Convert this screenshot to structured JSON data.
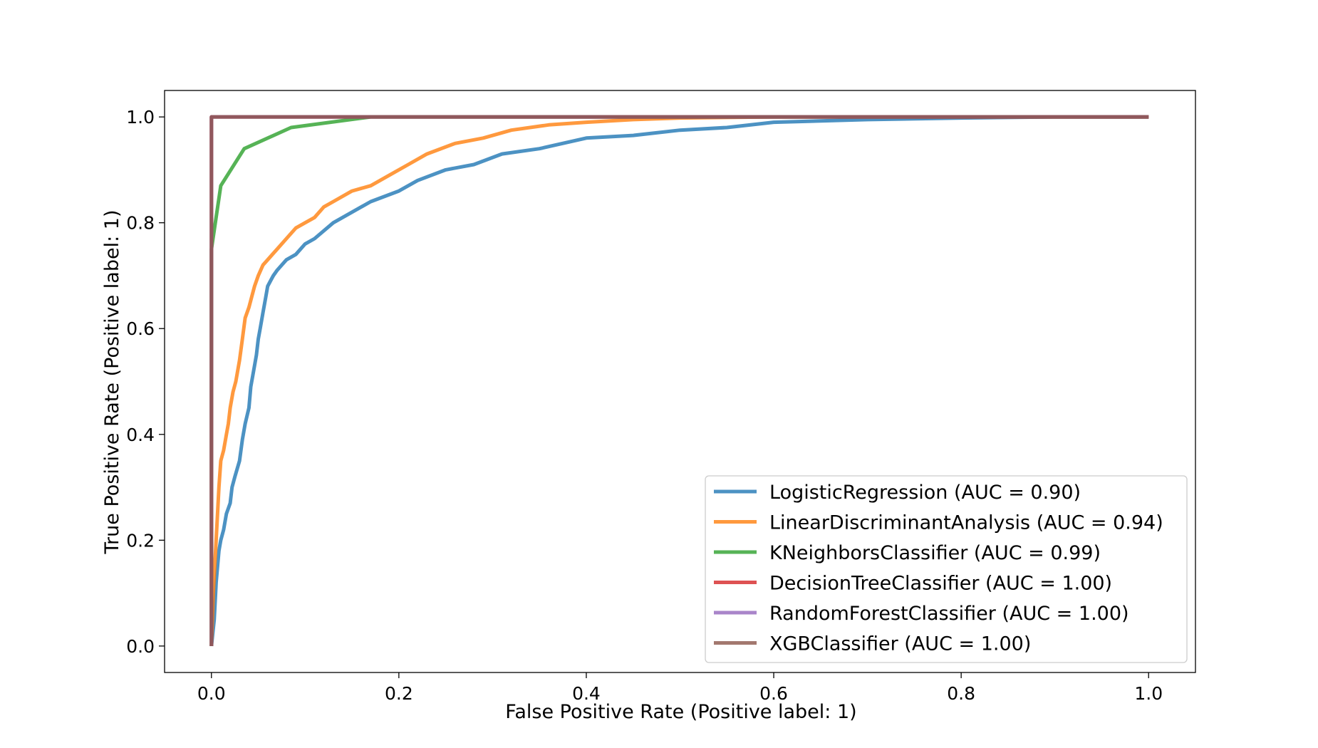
{
  "chart_data": {
    "type": "line",
    "title": "",
    "xlabel": "False Positive Rate (Positive label: 1)",
    "ylabel": "True Positive Rate (Positive label: 1)",
    "xlim": [
      -0.05,
      1.05
    ],
    "ylim": [
      -0.05,
      1.05
    ],
    "xticks": [
      "0.0",
      "0.2",
      "0.4",
      "0.6",
      "0.8",
      "1.0"
    ],
    "yticks": [
      "0.0",
      "0.2",
      "0.4",
      "0.6",
      "0.8",
      "1.0"
    ],
    "grid": false,
    "legend_position": "lower-right",
    "series": [
      {
        "name": "LogisticRegression (AUC = 0.90)",
        "color": "#1f77b4",
        "x": [
          0,
          0.003,
          0.005,
          0.008,
          0.01,
          0.013,
          0.016,
          0.02,
          0.022,
          0.025,
          0.03,
          0.033,
          0.036,
          0.04,
          0.042,
          0.045,
          0.048,
          0.05,
          0.052,
          0.055,
          0.058,
          0.06,
          0.063,
          0.066,
          0.07,
          0.075,
          0.08,
          0.09,
          0.1,
          0.11,
          0.13,
          0.15,
          0.17,
          0.2,
          0.22,
          0.25,
          0.28,
          0.31,
          0.35,
          0.4,
          0.45,
          0.5,
          0.55,
          0.6,
          0.7,
          0.8,
          0.9,
          1.0
        ],
        "y": [
          0,
          0.05,
          0.12,
          0.18,
          0.2,
          0.22,
          0.25,
          0.27,
          0.3,
          0.32,
          0.35,
          0.39,
          0.42,
          0.45,
          0.49,
          0.52,
          0.55,
          0.58,
          0.6,
          0.63,
          0.66,
          0.68,
          0.69,
          0.7,
          0.71,
          0.72,
          0.73,
          0.74,
          0.76,
          0.77,
          0.8,
          0.82,
          0.84,
          0.86,
          0.88,
          0.9,
          0.91,
          0.93,
          0.94,
          0.96,
          0.965,
          0.975,
          0.98,
          0.99,
          0.995,
          0.998,
          1.0,
          1.0
        ]
      },
      {
        "name": "LinearDiscriminantAnalysis (AUC = 0.94)",
        "color": "#ff7f0e",
        "x": [
          0,
          0.002,
          0.005,
          0.008,
          0.01,
          0.013,
          0.016,
          0.018,
          0.02,
          0.023,
          0.026,
          0.03,
          0.033,
          0.036,
          0.04,
          0.043,
          0.046,
          0.05,
          0.055,
          0.06,
          0.065,
          0.07,
          0.08,
          0.09,
          0.1,
          0.11,
          0.12,
          0.13,
          0.15,
          0.17,
          0.19,
          0.21,
          0.23,
          0.26,
          0.29,
          0.32,
          0.36,
          0.4,
          0.45,
          0.5,
          0.6,
          0.7,
          1.0
        ],
        "y": [
          0,
          0.1,
          0.2,
          0.3,
          0.35,
          0.37,
          0.4,
          0.42,
          0.45,
          0.48,
          0.5,
          0.54,
          0.58,
          0.62,
          0.64,
          0.66,
          0.68,
          0.7,
          0.72,
          0.73,
          0.74,
          0.75,
          0.77,
          0.79,
          0.8,
          0.81,
          0.83,
          0.84,
          0.86,
          0.87,
          0.89,
          0.91,
          0.93,
          0.95,
          0.96,
          0.975,
          0.985,
          0.99,
          0.995,
          0.998,
          1.0,
          1.0,
          1.0
        ]
      },
      {
        "name": "KNeighborsClassifier (AUC = 0.99)",
        "color": "#2ca02c",
        "x": [
          0,
          0.0,
          0.01,
          0.035,
          0.085,
          0.17,
          0.5,
          1.0
        ],
        "y": [
          0,
          0.75,
          0.87,
          0.94,
          0.98,
          1.0,
          1.0,
          1.0
        ]
      },
      {
        "name": "DecisionTreeClassifier (AUC = 1.00)",
        "color": "#d62728",
        "x": [
          0,
          0,
          1.0
        ],
        "y": [
          0,
          1.0,
          1.0
        ]
      },
      {
        "name": "RandomForestClassifier (AUC = 1.00)",
        "color": "#9467bd",
        "x": [
          0,
          0,
          1.0
        ],
        "y": [
          0,
          1.0,
          1.0
        ]
      },
      {
        "name": "XGBClassifier (AUC = 1.00)",
        "color": "#8c564b",
        "x": [
          0,
          0,
          1.0
        ],
        "y": [
          0,
          1.0,
          1.0
        ]
      }
    ]
  }
}
